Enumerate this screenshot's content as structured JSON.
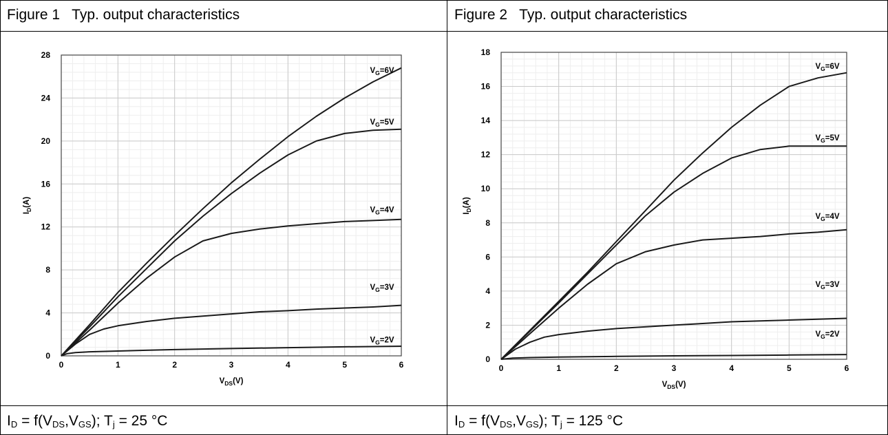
{
  "figures": [
    {
      "title": "Figure 1   Typ. output characteristics",
      "footer": {
        "i_main": "I",
        "i_sub": "D",
        "mid1": " = f(V",
        "vds_sub": "DS",
        "comma": ",V",
        "vgs_sub": "GS",
        "mid2": "); T",
        "t_sub": "j",
        "end": " = 25 °C"
      }
    },
    {
      "title": "Figure 2   Typ. output characteristics",
      "footer": {
        "i_main": "I",
        "i_sub": "D",
        "mid1": " = f(V",
        "vds_sub": "DS",
        "comma": ",V",
        "vgs_sub": "GS",
        "mid2": "); T",
        "t_sub": "j",
        "end": " = 125 °C"
      }
    }
  ],
  "chart_data": [
    {
      "type": "line",
      "xlabel": "VDS(V)",
      "ylabel": "ID(A)",
      "xlim": [
        0,
        6
      ],
      "ylim": [
        0,
        28
      ],
      "xticks": [
        0,
        1,
        2,
        3,
        4,
        5,
        6
      ],
      "yticks": [
        0,
        4,
        8,
        12,
        16,
        20,
        24,
        28
      ],
      "grid": true,
      "series": [
        {
          "name": "VG=6V",
          "x": [
            0,
            0.5,
            1,
            1.5,
            2,
            2.5,
            3,
            3.5,
            4,
            4.5,
            5,
            5.5,
            6
          ],
          "y": [
            0,
            2.9,
            5.9,
            8.6,
            11.2,
            13.7,
            16.1,
            18.3,
            20.4,
            22.3,
            24.0,
            25.5,
            26.8
          ]
        },
        {
          "name": "VG=5V",
          "x": [
            0,
            0.5,
            1,
            1.5,
            2,
            2.5,
            3,
            3.5,
            4,
            4.5,
            5,
            5.5,
            6
          ],
          "y": [
            0,
            2.7,
            5.5,
            8.1,
            10.7,
            13.0,
            15.1,
            17.0,
            18.7,
            20.0,
            20.7,
            21.0,
            21.1
          ]
        },
        {
          "name": "VG=4V",
          "x": [
            0,
            0.5,
            1,
            1.5,
            2,
            2.5,
            3,
            3.5,
            4,
            4.5,
            5,
            5.5,
            6
          ],
          "y": [
            0,
            2.4,
            4.9,
            7.2,
            9.2,
            10.7,
            11.4,
            11.8,
            12.1,
            12.3,
            12.5,
            12.6,
            12.7
          ]
        },
        {
          "name": "VG=3V",
          "x": [
            0,
            0.25,
            0.5,
            0.75,
            1,
            1.5,
            2,
            2.5,
            3,
            3.5,
            4,
            4.5,
            5,
            5.5,
            6
          ],
          "y": [
            0,
            1.1,
            2.0,
            2.5,
            2.8,
            3.2,
            3.5,
            3.7,
            3.9,
            4.1,
            4.2,
            4.35,
            4.45,
            4.55,
            4.7
          ]
        },
        {
          "name": "VG=2V",
          "x": [
            0,
            0.1,
            0.25,
            0.5,
            1,
            1.5,
            2,
            3,
            4,
            5,
            6
          ],
          "y": [
            0,
            0.2,
            0.3,
            0.38,
            0.45,
            0.52,
            0.58,
            0.68,
            0.76,
            0.84,
            0.9
          ]
        }
      ]
    },
    {
      "type": "line",
      "xlabel": "VDS(V)",
      "ylabel": "ID(A)",
      "xlim": [
        0,
        6
      ],
      "ylim": [
        0,
        18
      ],
      "xticks": [
        0,
        1,
        2,
        3,
        4,
        5,
        6
      ],
      "yticks": [
        0,
        2,
        4,
        6,
        8,
        10,
        12,
        14,
        16,
        18
      ],
      "grid": true,
      "series": [
        {
          "name": "VG=6V",
          "x": [
            0,
            0.5,
            1,
            1.5,
            2,
            2.5,
            3,
            3.5,
            4,
            4.5,
            5,
            5.5,
            6
          ],
          "y": [
            0,
            1.7,
            3.4,
            5.1,
            6.9,
            8.7,
            10.5,
            12.1,
            13.6,
            14.9,
            16.0,
            16.5,
            16.8
          ]
        },
        {
          "name": "VG=5V",
          "x": [
            0,
            0.5,
            1,
            1.5,
            2,
            2.5,
            3,
            3.5,
            4,
            4.5,
            5,
            5.5,
            6
          ],
          "y": [
            0,
            1.65,
            3.3,
            5.0,
            6.7,
            8.4,
            9.8,
            10.9,
            11.8,
            12.3,
            12.5,
            12.5,
            12.5
          ]
        },
        {
          "name": "VG=4V",
          "x": [
            0,
            0.5,
            1,
            1.5,
            2,
            2.5,
            3,
            3.5,
            4,
            4.5,
            5,
            5.5,
            6
          ],
          "y": [
            0,
            1.5,
            3.0,
            4.4,
            5.6,
            6.3,
            6.7,
            7.0,
            7.1,
            7.2,
            7.35,
            7.45,
            7.6
          ]
        },
        {
          "name": "VG=3V",
          "x": [
            0,
            0.25,
            0.5,
            0.75,
            1,
            1.5,
            2,
            2.5,
            3,
            3.5,
            4,
            4.5,
            5,
            5.5,
            6
          ],
          "y": [
            0,
            0.6,
            1.0,
            1.3,
            1.45,
            1.65,
            1.8,
            1.9,
            2.0,
            2.1,
            2.2,
            2.25,
            2.3,
            2.35,
            2.4
          ]
        },
        {
          "name": "VG=2V",
          "x": [
            0,
            0.2,
            0.5,
            1,
            2,
            3,
            4,
            5,
            6
          ],
          "y": [
            0,
            0.07,
            0.1,
            0.13,
            0.17,
            0.2,
            0.22,
            0.25,
            0.28
          ]
        }
      ]
    }
  ]
}
